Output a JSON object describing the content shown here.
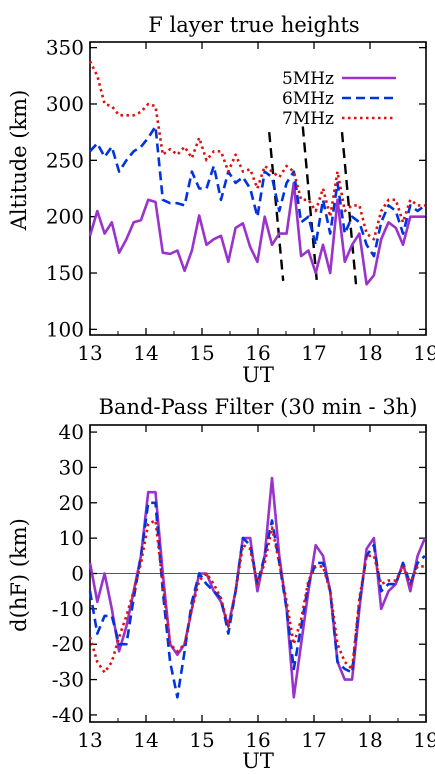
{
  "chart_data": [
    {
      "type": "line",
      "title": "F layer true heights",
      "xlabel": "UT",
      "ylabel": "Altitude (km)",
      "xlim": [
        13,
        19
      ],
      "ylim": [
        95,
        355
      ],
      "xticks": [
        "13",
        "14",
        "15",
        "16",
        "17",
        "18",
        "19"
      ],
      "yticks": [
        "100",
        "150",
        "200",
        "250",
        "300",
        "350"
      ],
      "legend_position": "top-right",
      "series": [
        {
          "name": "5MHz",
          "color": "#9933cc",
          "dash": "solid",
          "x": [
            13.0,
            13.13,
            13.26,
            13.39,
            13.52,
            13.65,
            13.78,
            13.91,
            14.04,
            14.17,
            14.3,
            14.43,
            14.56,
            14.69,
            14.82,
            14.95,
            15.08,
            15.21,
            15.34,
            15.47,
            15.6,
            15.73,
            15.86,
            15.99,
            16.12,
            16.25,
            16.38,
            16.51,
            16.64,
            16.77,
            16.9,
            17.03,
            17.16,
            17.29,
            17.42,
            17.55,
            17.68,
            17.81,
            17.94,
            18.07,
            18.2,
            18.33,
            18.46,
            18.59,
            18.72,
            18.85,
            18.98
          ],
          "y": [
            183,
            205,
            185,
            195,
            168,
            180,
            195,
            197,
            215,
            213,
            168,
            167,
            170,
            152,
            170,
            201,
            175,
            180,
            183,
            160,
            190,
            194,
            173,
            160,
            200,
            175,
            185,
            185,
            230,
            165,
            170,
            150,
            175,
            150,
            215,
            160,
            175,
            185,
            140,
            148,
            180,
            195,
            190,
            175,
            200,
            200,
            200
          ]
        },
        {
          "name": "6MHz",
          "color": "#0033dd",
          "dash": "dashed",
          "x": [
            13.0,
            13.13,
            13.26,
            13.39,
            13.52,
            13.65,
            13.78,
            13.91,
            14.04,
            14.17,
            14.3,
            14.43,
            14.56,
            14.69,
            14.82,
            14.95,
            15.08,
            15.21,
            15.34,
            15.47,
            15.6,
            15.73,
            15.86,
            15.99,
            16.12,
            16.25,
            16.38,
            16.51,
            16.64,
            16.77,
            16.9,
            17.03,
            17.16,
            17.29,
            17.42,
            17.55,
            17.68,
            17.81,
            17.94,
            18.07,
            18.2,
            18.33,
            18.46,
            18.59,
            18.72,
            18.85,
            18.98
          ],
          "y": [
            258,
            265,
            253,
            262,
            240,
            250,
            258,
            262,
            270,
            280,
            215,
            212,
            212,
            210,
            240,
            225,
            225,
            245,
            215,
            240,
            230,
            235,
            225,
            200,
            240,
            235,
            205,
            230,
            240,
            195,
            200,
            175,
            215,
            185,
            230,
            185,
            200,
            195,
            175,
            165,
            195,
            210,
            205,
            185,
            210,
            205,
            210
          ]
        },
        {
          "name": "7MHz",
          "color": "#dd1111",
          "dash": "dotted",
          "x": [
            13.0,
            13.13,
            13.26,
            13.39,
            13.52,
            13.65,
            13.78,
            13.91,
            14.04,
            14.17,
            14.3,
            14.43,
            14.56,
            14.69,
            14.82,
            14.95,
            15.08,
            15.21,
            15.34,
            15.47,
            15.6,
            15.73,
            15.86,
            15.99,
            16.12,
            16.25,
            16.38,
            16.51,
            16.64,
            16.77,
            16.9,
            17.03,
            17.16,
            17.29,
            17.42,
            17.55,
            17.68,
            17.81,
            17.94,
            18.07,
            18.2,
            18.33,
            18.46,
            18.59,
            18.72,
            18.85,
            18.98
          ],
          "y": [
            338,
            325,
            300,
            298,
            290,
            290,
            290,
            293,
            300,
            298,
            255,
            260,
            255,
            262,
            252,
            270,
            250,
            258,
            258,
            240,
            255,
            240,
            242,
            225,
            245,
            240,
            235,
            245,
            240,
            215,
            215,
            205,
            225,
            200,
            240,
            205,
            210,
            210,
            185,
            180,
            205,
            215,
            215,
            195,
            215,
            210,
            210
          ]
        }
      ],
      "annotations": [
        {
          "type": "dashed-line",
          "x1": 16.2,
          "y1": 275,
          "x2": 16.45,
          "y2": 143
        },
        {
          "type": "dashed-line",
          "x1": 16.8,
          "y1": 280,
          "x2": 17.05,
          "y2": 143
        },
        {
          "type": "dashed-line",
          "x1": 17.5,
          "y1": 275,
          "x2": 17.75,
          "y2": 140
        }
      ]
    },
    {
      "type": "line",
      "title": "Band-Pass Filter (30 min - 3h)",
      "xlabel": "UT",
      "ylabel": "d(hF) (km)",
      "xlim": [
        13,
        19
      ],
      "ylim": [
        -42,
        42
      ],
      "xticks": [
        "13",
        "14",
        "15",
        "16",
        "17",
        "18",
        "19"
      ],
      "yticks": [
        "40",
        "30",
        "20",
        "10",
        "0",
        "-10",
        "-20",
        "-30",
        "-40"
      ],
      "zero_line": true,
      "series": [
        {
          "name": "5MHz",
          "color": "#9933cc",
          "dash": "solid",
          "x": [
            13.0,
            13.13,
            13.26,
            13.39,
            13.52,
            13.65,
            13.78,
            13.91,
            14.04,
            14.17,
            14.3,
            14.43,
            14.56,
            14.69,
            14.82,
            14.95,
            15.08,
            15.21,
            15.34,
            15.47,
            15.6,
            15.73,
            15.86,
            15.99,
            16.12,
            16.25,
            16.38,
            16.51,
            16.64,
            16.77,
            16.9,
            17.03,
            17.16,
            17.29,
            17.42,
            17.55,
            17.68,
            17.81,
            17.94,
            18.07,
            18.2,
            18.33,
            18.46,
            18.59,
            18.72,
            18.85,
            18.98
          ],
          "y": [
            3,
            -8,
            0,
            -10,
            -22,
            -15,
            -5,
            5,
            23,
            23,
            0,
            -20,
            -23,
            -20,
            -10,
            0,
            0,
            -5,
            -8,
            -15,
            -5,
            10,
            10,
            -5,
            5,
            27,
            5,
            -10,
            -35,
            -20,
            -5,
            8,
            5,
            -5,
            -25,
            -30,
            -30,
            -10,
            7,
            10,
            -10,
            -5,
            -3,
            3,
            -5,
            5,
            10
          ]
        },
        {
          "name": "6MHz",
          "color": "#0033dd",
          "dash": "dashed",
          "x": [
            13.0,
            13.13,
            13.26,
            13.39,
            13.52,
            13.65,
            13.78,
            13.91,
            14.04,
            14.17,
            14.3,
            14.43,
            14.56,
            14.69,
            14.82,
            14.95,
            15.08,
            15.21,
            15.34,
            15.47,
            15.6,
            15.73,
            15.86,
            15.99,
            16.12,
            16.25,
            16.38,
            16.51,
            16.64,
            16.77,
            16.9,
            17.03,
            17.16,
            17.29,
            17.42,
            17.55,
            17.68,
            17.81,
            17.94,
            18.07,
            18.2,
            18.33,
            18.46,
            18.59,
            18.72,
            18.85,
            18.98
          ],
          "y": [
            -5,
            -17,
            -12,
            -12,
            -20,
            -20,
            -7,
            5,
            20,
            20,
            -5,
            -25,
            -35,
            -22,
            -8,
            0,
            -3,
            -5,
            -7,
            -17,
            -5,
            10,
            8,
            -3,
            5,
            15,
            3,
            -10,
            -27,
            -15,
            -3,
            3,
            3,
            -5,
            -25,
            -27,
            -28,
            -8,
            5,
            8,
            -5,
            -3,
            -3,
            3,
            -3,
            3,
            5
          ]
        },
        {
          "name": "7MHz",
          "color": "#dd1111",
          "dash": "dotted",
          "x": [
            13.0,
            13.13,
            13.26,
            13.39,
            13.52,
            13.65,
            13.78,
            13.91,
            14.04,
            14.17,
            14.3,
            14.43,
            14.56,
            14.69,
            14.82,
            14.95,
            15.08,
            15.21,
            15.34,
            15.47,
            15.6,
            15.73,
            15.86,
            15.99,
            16.12,
            16.25,
            16.38,
            16.51,
            16.64,
            16.77,
            16.9,
            17.03,
            17.16,
            17.29,
            17.42,
            17.55,
            17.68,
            17.81,
            17.94,
            18.07,
            18.2,
            18.33,
            18.46,
            18.59,
            18.72,
            18.85,
            18.98
          ],
          "y": [
            -18,
            -25,
            -28,
            -25,
            -18,
            -12,
            -5,
            3,
            14,
            15,
            -3,
            -20,
            -22,
            -20,
            -10,
            -2,
            0,
            -3,
            -7,
            -15,
            -5,
            8,
            7,
            -3,
            3,
            13,
            3,
            -8,
            -20,
            -13,
            -2,
            2,
            2,
            -5,
            -20,
            -25,
            -27,
            -7,
            5,
            5,
            -3,
            -2,
            -2,
            2,
            -3,
            2,
            2
          ]
        }
      ]
    }
  ]
}
